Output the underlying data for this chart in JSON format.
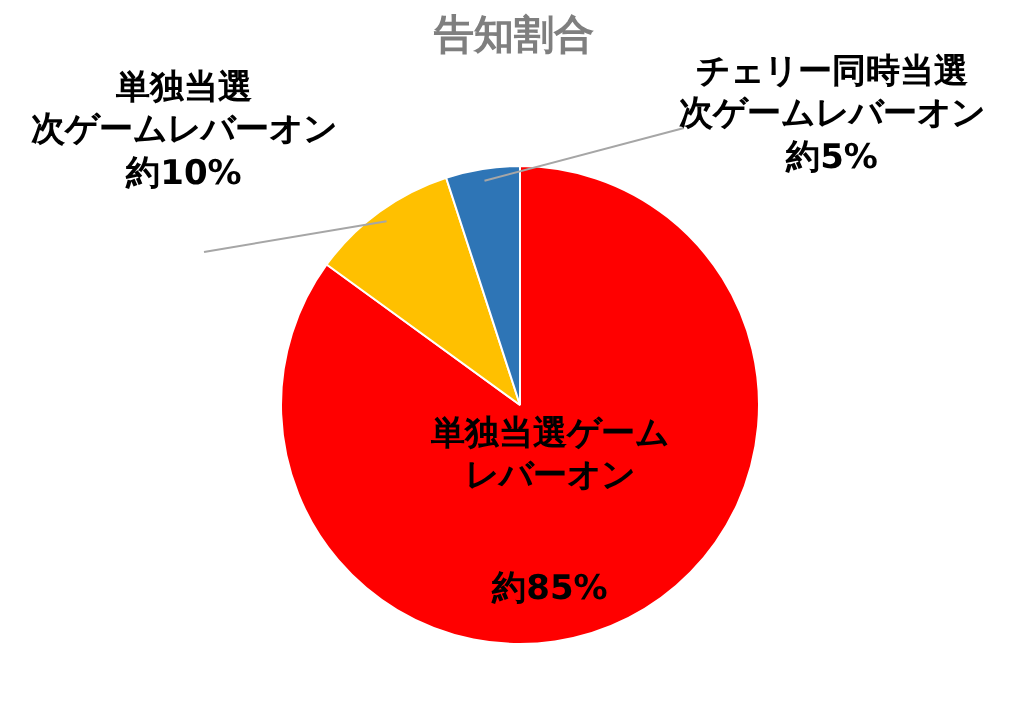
{
  "chart_data": {
    "type": "pie",
    "title": "告知割合",
    "categories": [
      "単独当選ゲームレバーオン",
      "単独当選次ゲームレバーオン",
      "チェリー同時当選次ゲームレバーオン"
    ],
    "values": [
      85,
      10,
      5
    ],
    "colors": [
      "#ff0000",
      "#ffc000",
      "#2e75b6"
    ],
    "value_labels": [
      "約85%",
      "約10%",
      "約5%"
    ],
    "legend": false
  }
}
